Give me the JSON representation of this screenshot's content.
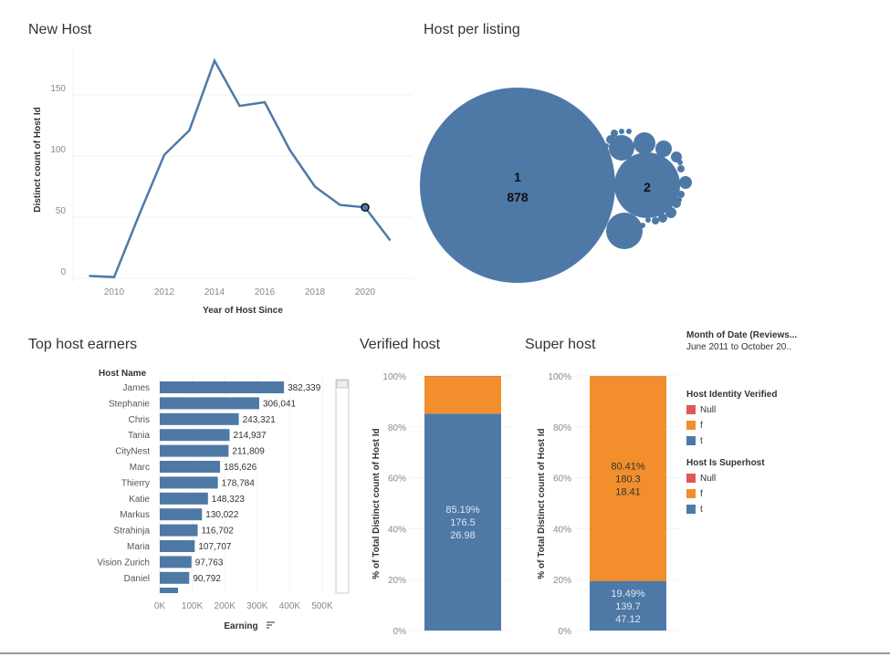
{
  "titles": {
    "new_host": "New Host",
    "host_per_listing": "Host per listing",
    "top_host_earners": "Top host earners",
    "verified_host": "Verified host",
    "super_host": "Super host"
  },
  "colors": {
    "blue": "#4e79a7",
    "orange": "#f28e2b",
    "red": "#e15759",
    "axis_text": "#888888"
  },
  "legend": {
    "date_filter_title": "Month of Date (Reviews...",
    "date_filter_value": "June 2011 to October 20..",
    "identity": {
      "title": "Host Identity Verified",
      "items": [
        {
          "label": "Null",
          "color": "#e15759"
        },
        {
          "label": "f",
          "color": "#f28e2b"
        },
        {
          "label": "t",
          "color": "#4e79a7"
        }
      ]
    },
    "superhost": {
      "title": "Host Is Superhost",
      "items": [
        {
          "label": "Null",
          "color": "#e15759"
        },
        {
          "label": "f",
          "color": "#f28e2b"
        },
        {
          "label": "t",
          "color": "#4e79a7"
        }
      ]
    }
  },
  "chart_data": [
    {
      "type": "line",
      "title": "New Host",
      "xlabel": "Year of Host Since",
      "ylabel": "Distinct count of Host Id",
      "x": [
        2009,
        2010,
        2011,
        2012,
        2013,
        2014,
        2015,
        2016,
        2017,
        2018,
        2019,
        2020,
        2021
      ],
      "values": [
        2,
        1,
        52,
        101,
        121,
        178,
        141,
        144,
        105,
        75,
        60,
        58,
        31
      ],
      "xticks": [
        "2010",
        "2012",
        "2014",
        "2016",
        "2018",
        "2020"
      ],
      "yticks": [
        "0",
        "50",
        "100",
        "150"
      ],
      "ylim": [
        0,
        180
      ],
      "highlighted_x": 2020,
      "grid": "horizontal"
    },
    {
      "type": "bubble",
      "title": "Host per listing",
      "bubbles": [
        {
          "label": "1",
          "value": 878
        },
        {
          "label": "2"
        }
      ]
    },
    {
      "type": "bar",
      "orientation": "horizontal",
      "title": "Top host earners",
      "category_header": "Host Name",
      "xlabel": "Earning",
      "categories": [
        "James",
        "Stephanie",
        "Chris",
        "Tania",
        "CityNest",
        "Marc",
        "Thierry",
        "Katie",
        "Markus",
        "Strahinja",
        "Maria",
        "Vision Zurich",
        "Daniel"
      ],
      "values": [
        382339,
        306041,
        243321,
        214937,
        211809,
        185626,
        178784,
        148323,
        130022,
        116702,
        107707,
        97763,
        90792
      ],
      "value_labels": [
        "382,339",
        "306,041",
        "243,321",
        "214,937",
        "211,809",
        "185,626",
        "178,784",
        "148,323",
        "130,022",
        "116,702",
        "107,707",
        "97,763",
        "90,792"
      ],
      "xticks": [
        "0K",
        "100K",
        "200K",
        "300K",
        "400K",
        "500K"
      ],
      "xlim": [
        0,
        500000
      ]
    },
    {
      "type": "stacked_bar",
      "title": "Verified host",
      "ylabel": "% of Total Distinct count of Host Id",
      "yticks": [
        "0%",
        "20%",
        "40%",
        "60%",
        "80%",
        "100%"
      ],
      "segments": [
        {
          "name": "t",
          "percent": 85.19,
          "labels": [
            "85.19%",
            "176.5",
            "26.98"
          ]
        },
        {
          "name": "f",
          "percent": 14.61,
          "labels": []
        },
        {
          "name": "Null",
          "percent": 0.2,
          "labels": []
        }
      ]
    },
    {
      "type": "stacked_bar",
      "title": "Super host",
      "ylabel": "% of Total Distinct count of Host Id",
      "yticks": [
        "0%",
        "20%",
        "40%",
        "60%",
        "80%",
        "100%"
      ],
      "segments": [
        {
          "name": "t",
          "percent": 19.49,
          "labels": [
            "19.49%",
            "139.7",
            "47.12"
          ]
        },
        {
          "name": "f",
          "percent": 80.41,
          "labels": [
            "80.41%",
            "180.3",
            "18.41"
          ]
        },
        {
          "name": "Null",
          "percent": 0.1,
          "labels": []
        }
      ]
    }
  ]
}
